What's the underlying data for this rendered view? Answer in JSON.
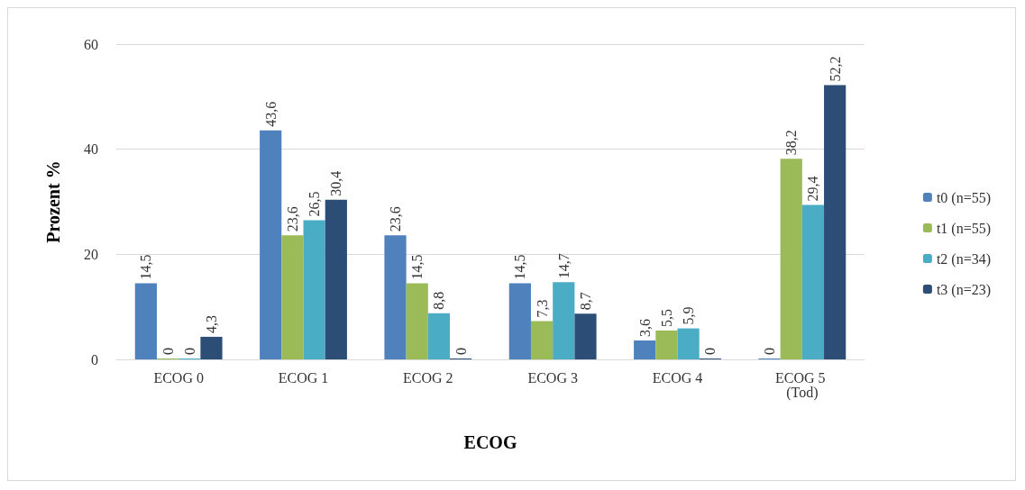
{
  "chart_data": {
    "type": "bar",
    "xlabel": "ECOG",
    "ylabel": "Prozent %",
    "categories": [
      "ECOG 0",
      "ECOG 1",
      "ECOG 2",
      "ECOG 3",
      "ECOG 4",
      "ECOG 5 (Tod)"
    ],
    "series": [
      {
        "name": "t0 (n=55)",
        "color": "#4f81bd",
        "values": [
          14.5,
          43.6,
          23.6,
          14.5,
          3.6,
          0
        ],
        "value_labels": [
          "14,5",
          "43,6",
          "23,6",
          "14,5",
          "3,6",
          "0"
        ]
      },
      {
        "name": "t1 (n=55)",
        "color": "#9bbb59",
        "values": [
          0,
          23.6,
          14.5,
          7.3,
          5.5,
          38.2
        ],
        "value_labels": [
          "0",
          "23,6",
          "14,5",
          "7,3",
          "5,5",
          "38,2"
        ]
      },
      {
        "name": "t2 (n=34)",
        "color": "#4bacc6",
        "values": [
          0,
          26.5,
          8.8,
          14.7,
          5.9,
          29.4
        ],
        "value_labels": [
          "0",
          "26,5",
          "8,8",
          "14,7",
          "5,9",
          "29,4"
        ]
      },
      {
        "name": "t3 (n=23)",
        "color": "#2c4d75",
        "values": [
          4.3,
          30.4,
          0,
          8.7,
          0,
          52.2
        ],
        "value_labels": [
          "4,3",
          "30,4",
          "0",
          "8,7",
          "0",
          "52,2"
        ]
      }
    ],
    "ylim": [
      0,
      60
    ],
    "yticks": [
      0,
      20,
      40,
      60
    ],
    "grid": "y",
    "legend": "right"
  }
}
